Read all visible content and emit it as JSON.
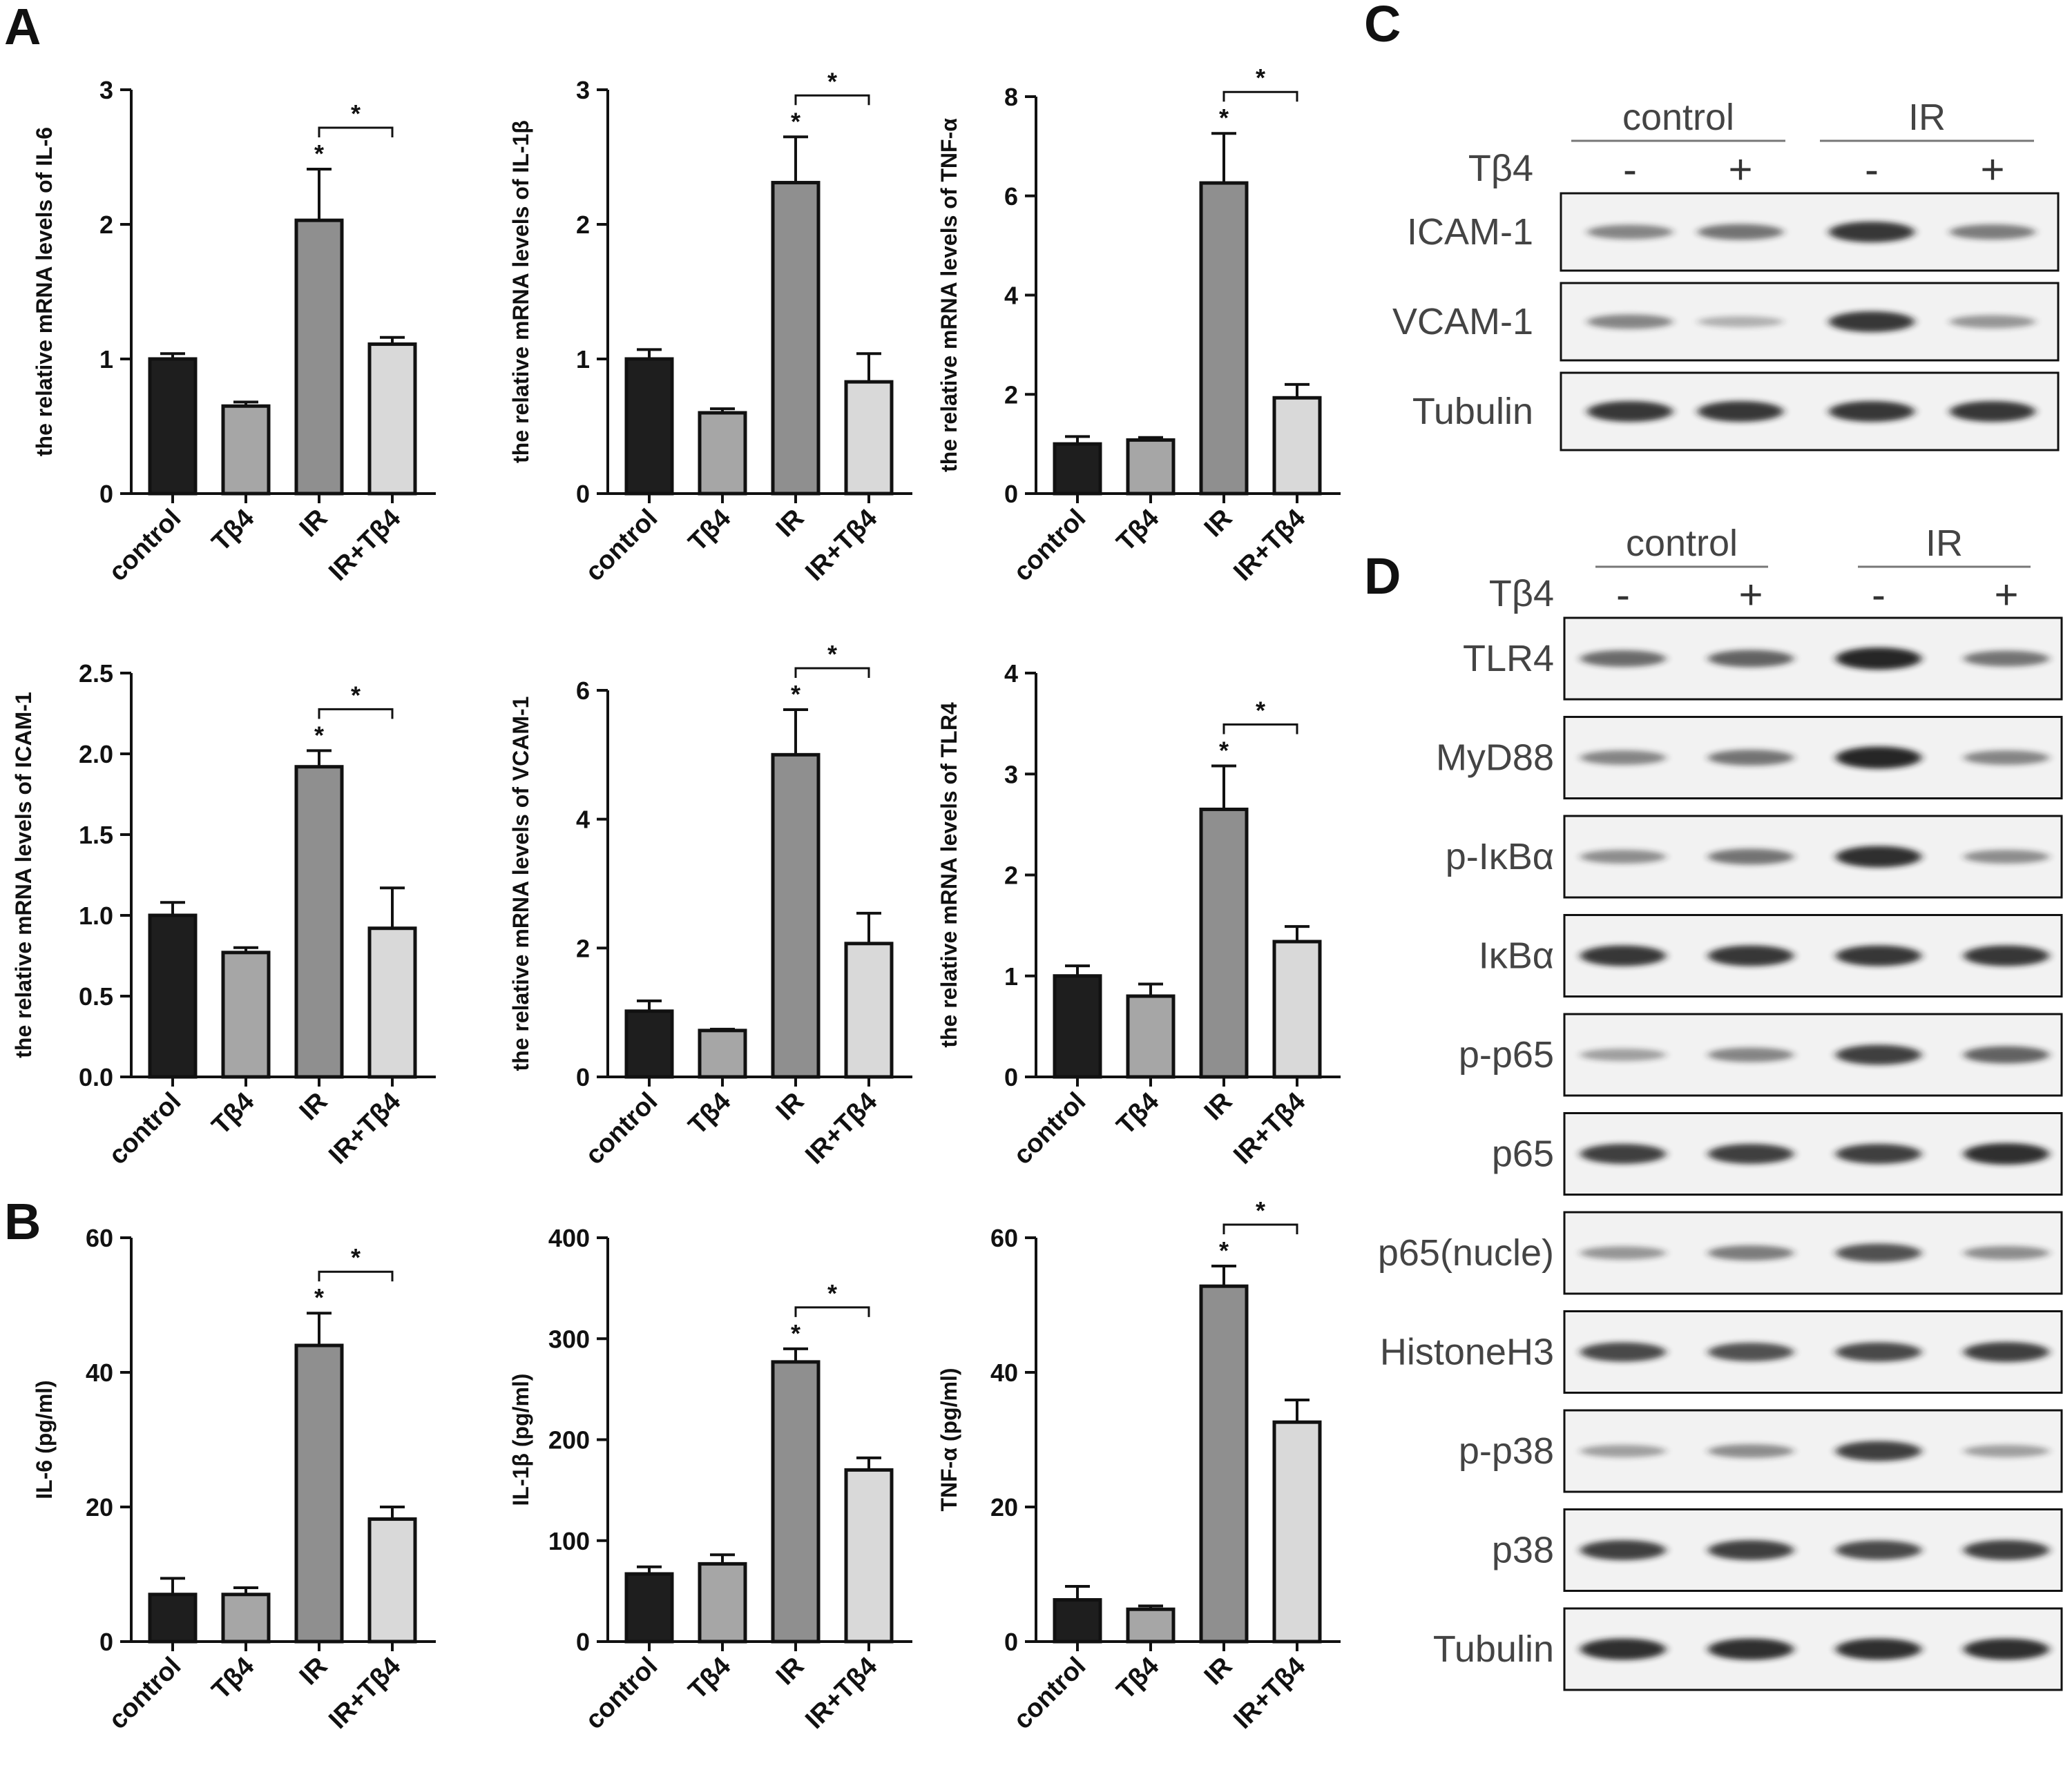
{
  "panel_labels": {
    "A": "A",
    "B": "B",
    "C": "C",
    "D": "D"
  },
  "chart_data": [
    {
      "id": "a-il6",
      "panel": "A",
      "type": "bar",
      "ylabel": "the relative mRNA levels of IL-6",
      "categories": [
        "control",
        "Tβ4",
        "IR",
        "IR+Tβ4"
      ],
      "values": [
        1.0,
        0.65,
        2.03,
        1.11
      ],
      "errors": [
        0.04,
        0.03,
        0.38,
        0.05
      ],
      "ylim": [
        0,
        3
      ],
      "yticks": [
        "0",
        "1",
        "2",
        "3"
      ],
      "significance": "*"
    },
    {
      "id": "a-il1b",
      "panel": "A",
      "type": "bar",
      "ylabel": "the relative mRNA levels of IL-1β",
      "categories": [
        "control",
        "Tβ4",
        "IR",
        "IR+Tβ4"
      ],
      "values": [
        1.0,
        0.6,
        2.31,
        0.83
      ],
      "errors": [
        0.07,
        0.03,
        0.34,
        0.21
      ],
      "ylim": [
        0,
        3
      ],
      "yticks": [
        "0",
        "1",
        "2",
        "3"
      ],
      "significance": "*"
    },
    {
      "id": "a-tnfa",
      "panel": "A",
      "type": "bar",
      "ylabel": "the relative mRNA levels of TNF-α",
      "categories": [
        "control",
        "Tβ4",
        "IR",
        "IR+Tβ4"
      ],
      "values": [
        1.0,
        1.08,
        6.26,
        1.93
      ],
      "errors": [
        0.15,
        0.05,
        1.0,
        0.27
      ],
      "ylim": [
        0,
        8
      ],
      "yticks": [
        "0",
        "2",
        "4",
        "6",
        "8"
      ],
      "significance": "*"
    },
    {
      "id": "a-icam1",
      "panel": "A",
      "type": "bar",
      "ylabel": "the relative mRNA levels of ICAM-1",
      "categories": [
        "control",
        "Tβ4",
        "IR",
        "IR+Tβ4"
      ],
      "values": [
        1.0,
        0.77,
        1.92,
        0.92
      ],
      "errors": [
        0.08,
        0.03,
        0.1,
        0.25
      ],
      "ylim": [
        0,
        2.5
      ],
      "yticks": [
        "0.0",
        "0.5",
        "1.0",
        "1.5",
        "2.0",
        "2.5"
      ],
      "significance": "*"
    },
    {
      "id": "a-vcam1",
      "panel": "A",
      "type": "bar",
      "ylabel": "the relative mRNA levels of VCAM-1",
      "categories": [
        "control",
        "Tβ4",
        "IR",
        "IR+Tβ4"
      ],
      "values": [
        1.02,
        0.72,
        5.0,
        2.07
      ],
      "errors": [
        0.16,
        0.02,
        0.7,
        0.47
      ],
      "ylim": [
        0,
        6
      ],
      "yticks": [
        "0",
        "2",
        "4",
        "6"
      ],
      "significance": "*"
    },
    {
      "id": "a-tlr4",
      "panel": "A",
      "type": "bar",
      "ylabel": "the relative mRNA levels of TLR4",
      "categories": [
        "control",
        "Tβ4",
        "IR",
        "IR+Tβ4"
      ],
      "values": [
        1.0,
        0.8,
        2.65,
        1.34
      ],
      "errors": [
        0.1,
        0.12,
        0.43,
        0.15
      ],
      "ylim": [
        0,
        4
      ],
      "yticks": [
        "0",
        "1",
        "2",
        "3",
        "4"
      ],
      "significance": "*"
    },
    {
      "id": "b-il6",
      "panel": "B",
      "type": "bar",
      "ylabel": "IL-6 (pg/ml)",
      "categories": [
        "control",
        "Tβ4",
        "IR",
        "IR+Tβ4"
      ],
      "values": [
        7.0,
        7.0,
        44.0,
        18.2
      ],
      "errors": [
        2.4,
        1.0,
        4.8,
        1.8
      ],
      "ylim": [
        0,
        60
      ],
      "yticks": [
        "0",
        "20",
        "40",
        "60"
      ],
      "significance": "*"
    },
    {
      "id": "b-il1b",
      "panel": "B",
      "type": "bar",
      "ylabel": "IL-1β (pg/ml)",
      "categories": [
        "control",
        "Tβ4",
        "IR",
        "IR+Tβ4"
      ],
      "values": [
        67,
        77,
        277,
        170
      ],
      "errors": [
        7,
        9,
        13,
        12
      ],
      "ylim": [
        0,
        400
      ],
      "yticks": [
        "0",
        "100",
        "200",
        "300",
        "400"
      ],
      "significance": "*"
    },
    {
      "id": "b-tnfa",
      "panel": "B",
      "type": "bar",
      "ylabel": "TNF-α (pg/ml)",
      "categories": [
        "control",
        "Tβ4",
        "IR",
        "IR+Tβ4"
      ],
      "values": [
        6.2,
        4.8,
        52.8,
        32.6
      ],
      "errors": [
        2.0,
        0.5,
        3.0,
        3.3
      ],
      "ylim": [
        0,
        60
      ],
      "yticks": [
        "0",
        "20",
        "40",
        "60"
      ],
      "significance": "*"
    }
  ],
  "blots": {
    "C": {
      "groups": [
        "control",
        "IR"
      ],
      "treatment_label": "Tβ4",
      "treatment_signs": [
        "-",
        "+",
        "-",
        "+"
      ],
      "rows": [
        {
          "label": "ICAM-1",
          "intensity": [
            0.45,
            0.55,
            0.9,
            0.5
          ]
        },
        {
          "label": "VCAM-1",
          "intensity": [
            0.45,
            0.2,
            0.9,
            0.35
          ]
        },
        {
          "label": "Tubulin",
          "intensity": [
            0.9,
            0.9,
            0.9,
            0.9
          ]
        }
      ]
    },
    "D": {
      "groups": [
        "control",
        "IR"
      ],
      "treatment_label": "Tβ4",
      "treatment_signs": [
        "-",
        "+",
        "-",
        "+"
      ],
      "rows": [
        {
          "label": "TLR4",
          "intensity": [
            0.6,
            0.65,
            1.0,
            0.55
          ]
        },
        {
          "label": "MyD88",
          "intensity": [
            0.45,
            0.55,
            1.0,
            0.45
          ]
        },
        {
          "label": "p-IκBα",
          "intensity": [
            0.4,
            0.55,
            0.95,
            0.4
          ]
        },
        {
          "label": "IκBα",
          "intensity": [
            0.9,
            0.9,
            0.9,
            0.9
          ]
        },
        {
          "label": "p-p65",
          "intensity": [
            0.3,
            0.45,
            0.85,
            0.65
          ]
        },
        {
          "label": "p65",
          "intensity": [
            0.85,
            0.85,
            0.85,
            0.95
          ]
        },
        {
          "label": "p65(nucle)",
          "intensity": [
            0.35,
            0.5,
            0.75,
            0.4
          ]
        },
        {
          "label": "HistoneH3",
          "intensity": [
            0.8,
            0.75,
            0.8,
            0.85
          ]
        },
        {
          "label": "p-p38",
          "intensity": [
            0.3,
            0.4,
            0.85,
            0.3
          ]
        },
        {
          "label": "p38",
          "intensity": [
            0.85,
            0.85,
            0.8,
            0.85
          ]
        },
        {
          "label": "Tubulin",
          "intensity": [
            0.95,
            0.95,
            0.95,
            0.95
          ]
        }
      ]
    }
  },
  "colors": {
    "control": "#1e1e1e",
    "Tβ4": "#a6a6a6",
    "IR": "#8f8f8f",
    "IR+Tβ4": "#d9d9d9",
    "axis": "#111111",
    "band": "#1a1a1a"
  }
}
